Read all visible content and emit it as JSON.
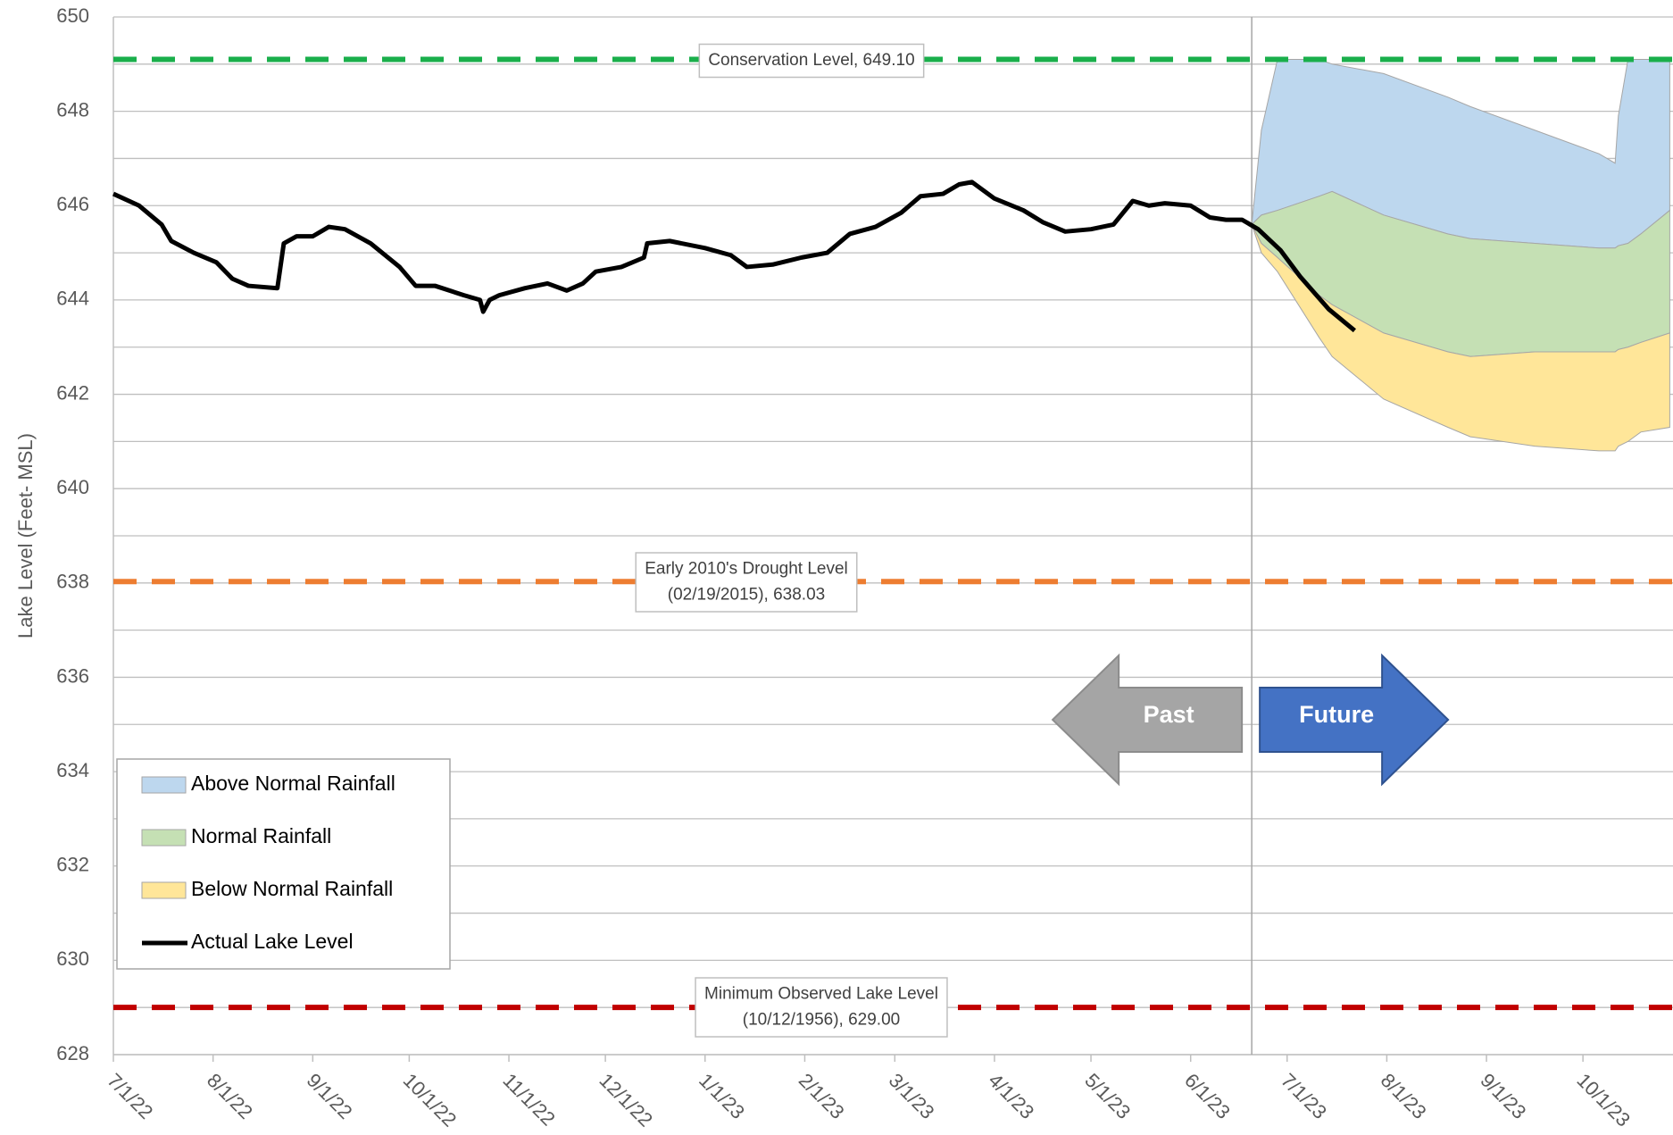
{
  "chart_data": {
    "type": "line",
    "ylabel": "Lake Level (Feet- MSL)",
    "xlim": [
      "7/1/22",
      "10/29/23"
    ],
    "xticks": [
      "7/1/22",
      "8/1/22",
      "9/1/22",
      "10/1/22",
      "11/1/22",
      "12/1/22",
      "1/1/23",
      "2/1/23",
      "3/1/23",
      "4/1/23",
      "5/1/23",
      "6/1/23",
      "7/1/23",
      "8/1/23",
      "9/1/23",
      "10/1/23"
    ],
    "ylim": [
      628,
      650
    ],
    "yticks": [
      628,
      630,
      632,
      634,
      636,
      638,
      640,
      642,
      644,
      646,
      648,
      650
    ],
    "grid": true,
    "legend_position": "lower left",
    "bands": [
      {
        "name": "Above Normal Rainfall",
        "color": "#bdd7ee",
        "x": [
          "6/20/23",
          "6/23/23",
          "6/28/23",
          "7/11/23",
          "7/15/23",
          "7/31/23",
          "8/20/23",
          "8/27/23",
          "9/16/23",
          "10/6/23",
          "10/11/23",
          "10/12/23",
          "10/15/23",
          "10/19/23",
          "10/28/23"
        ],
        "values": [
          645.6,
          647.6,
          649.1,
          649.1,
          649.0,
          648.8,
          648.3,
          648.1,
          647.6,
          647.1,
          646.9,
          647.9,
          649.1,
          649.1,
          649.1
        ],
        "lower": [
          645.6,
          645.8,
          645.9,
          646.2,
          646.3,
          645.8,
          645.4,
          645.3,
          645.2,
          645.1,
          645.1,
          645.15,
          645.2,
          645.4,
          645.9
        ]
      },
      {
        "name": "Normal Rainfall",
        "color": "#c5e0b4",
        "x": [
          "6/20/23",
          "6/23/23",
          "6/28/23",
          "7/11/23",
          "7/15/23",
          "7/31/23",
          "8/20/23",
          "8/27/23",
          "9/16/23",
          "10/6/23",
          "10/11/23",
          "10/12/23",
          "10/15/23",
          "10/19/23",
          "10/28/23"
        ],
        "values": [
          645.6,
          645.8,
          645.9,
          646.2,
          646.3,
          645.8,
          645.4,
          645.3,
          645.2,
          645.1,
          645.1,
          645.15,
          645.2,
          645.4,
          645.9
        ],
        "lower": [
          645.6,
          645.2,
          644.9,
          644.1,
          643.9,
          643.3,
          642.9,
          642.8,
          642.9,
          642.9,
          642.9,
          642.95,
          643.0,
          643.1,
          643.3
        ]
      },
      {
        "name": "Below Normal Rainfall",
        "color": "#ffe699",
        "x": [
          "6/20/23",
          "6/23/23",
          "6/28/23",
          "7/11/23",
          "7/15/23",
          "7/31/23",
          "8/20/23",
          "8/27/23",
          "9/16/23",
          "10/6/23",
          "10/11/23",
          "10/12/23",
          "10/15/23",
          "10/19/23",
          "10/28/23"
        ],
        "values": [
          645.6,
          645.2,
          644.9,
          644.1,
          643.9,
          643.3,
          642.9,
          642.8,
          642.9,
          642.9,
          642.9,
          642.95,
          643.0,
          643.1,
          643.3
        ],
        "lower": [
          645.6,
          645.0,
          644.6,
          643.2,
          642.8,
          641.9,
          641.3,
          641.1,
          640.9,
          640.8,
          640.8,
          640.9,
          641.0,
          641.2,
          641.3
        ]
      }
    ],
    "series": [
      {
        "name": "Actual Lake Level",
        "color": "#000000",
        "x": [
          "7/1/22",
          "7/9/22",
          "7/16/22",
          "7/19/22",
          "7/26/22",
          "8/2/22",
          "8/7/22",
          "8/12/22",
          "8/21/22",
          "8/23/22",
          "8/27/22",
          "9/1/22",
          "9/6/22",
          "9/11/22",
          "9/19/22",
          "9/28/22",
          "10/3/22",
          "10/9/22",
          "10/18/22",
          "10/23/22",
          "10/24/22",
          "10/26/22",
          "10/29/22",
          "11/6/22",
          "11/13/22",
          "11/19/22",
          "11/24/22",
          "11/28/22",
          "12/6/22",
          "12/13/22",
          "12/14/22",
          "12/21/22",
          "1/1/23",
          "1/9/23",
          "1/14/23",
          "1/22/23",
          "1/31/23",
          "2/8/23",
          "2/15/23",
          "2/23/23",
          "3/3/23",
          "3/9/23",
          "3/16/23",
          "3/21/23",
          "3/25/23",
          "4/1/23",
          "4/10/23",
          "4/16/23",
          "4/23/23",
          "5/1/23",
          "5/8/23",
          "5/14/23",
          "5/19/23",
          "5/24/23",
          "6/1/23",
          "6/7/23",
          "6/12/23",
          "6/17/23",
          "6/22/23",
          "6/29/23",
          "7/5/23",
          "7/14/23",
          "7/22/23"
        ],
        "values": [
          646.25,
          646.0,
          645.6,
          645.25,
          645.0,
          644.8,
          644.45,
          644.3,
          644.25,
          645.2,
          645.35,
          645.35,
          645.55,
          645.5,
          645.2,
          644.7,
          644.3,
          644.3,
          644.1,
          644.0,
          643.75,
          644.0,
          644.1,
          644.25,
          644.35,
          644.2,
          644.35,
          644.6,
          644.7,
          644.9,
          645.2,
          645.25,
          645.1,
          644.95,
          644.7,
          644.75,
          644.9,
          645.0,
          645.4,
          645.55,
          645.85,
          646.2,
          646.25,
          646.45,
          646.5,
          646.15,
          645.9,
          645.65,
          645.45,
          645.5,
          645.6,
          646.1,
          646.0,
          646.05,
          646.0,
          645.75,
          645.7,
          645.7,
          645.5,
          645.05,
          644.5,
          643.8,
          643.35
        ]
      }
    ],
    "reference_lines": [
      {
        "label": [
          "Conservation Level, 649.10"
        ],
        "value": 649.1,
        "color": "#1aaf4b"
      },
      {
        "label": [
          "Early 2010's Drought Level",
          "(02/19/2015), 638.03"
        ],
        "value": 638.03,
        "color": "#ed7d31"
      },
      {
        "label": [
          "Minimum Observed Lake Level",
          "(10/12/1956), 629.00"
        ],
        "value": 629.0,
        "color": "#c00000"
      }
    ],
    "divider_x": "6/20/23",
    "arrows": {
      "past": "Past",
      "future": "Future"
    }
  }
}
